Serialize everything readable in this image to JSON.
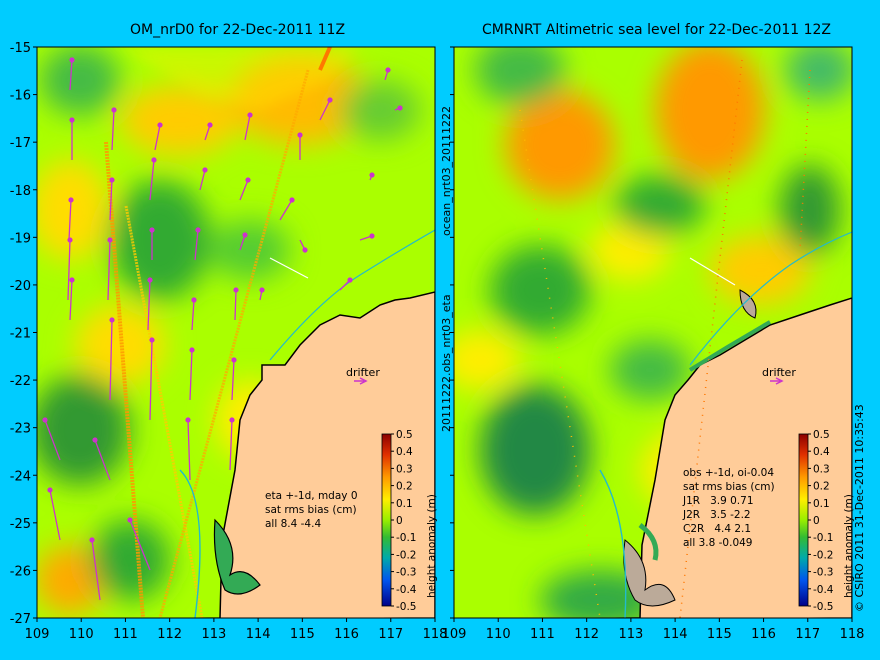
{
  "left_panel": {
    "title": "OM_nrD0 for 22-Dec-2011 11Z",
    "info_lines": [
      "eta +-1d, mday 0",
      "sat rms bias (cm)",
      "all 8.4 -4.4"
    ],
    "drifter_label": "drifter"
  },
  "right_panel": {
    "title": "CMRNRT Altimetric sea level  for 22-Dec-2011 12Z",
    "info_lines": [
      "obs +-1d, oi-0.04",
      "sat rms bias (cm)",
      "J1R   3.9 0.71",
      "J2R   3.5 -2.2",
      "C2R   4.4 2.1",
      "all 3.8 -0.049"
    ],
    "drifter_label": "drifter"
  },
  "middle_vertical_label": "20111222.obs_nrt03_eta",
  "middle_vertical_label2": "ocean_nrt03_20111222",
  "right_credit": "© CSIRO 2011   31-Dec-2011 10:35:43",
  "axes": {
    "y_ticks": [
      "-15",
      "-16",
      "-17",
      "-18",
      "-19",
      "-20",
      "-21",
      "-22",
      "-23",
      "-24",
      "-25",
      "-26",
      "-27"
    ],
    "x_ticks": [
      "109",
      "110",
      "111",
      "112",
      "113",
      "114",
      "115",
      "116",
      "117",
      "118"
    ]
  },
  "colorbar": {
    "label": "height anomaly (m)",
    "ticks": [
      "0.5",
      "0.4",
      "0.3",
      "0.2",
      "0.1",
      "0",
      "-0.1",
      "-0.2",
      "-0.3",
      "-0.4",
      "-0.5"
    ]
  },
  "colors": {
    "background": "#00ccff",
    "land": "#ffcc99",
    "base_anomaly": "#aaff00",
    "arrow": "#cc33cc"
  }
}
